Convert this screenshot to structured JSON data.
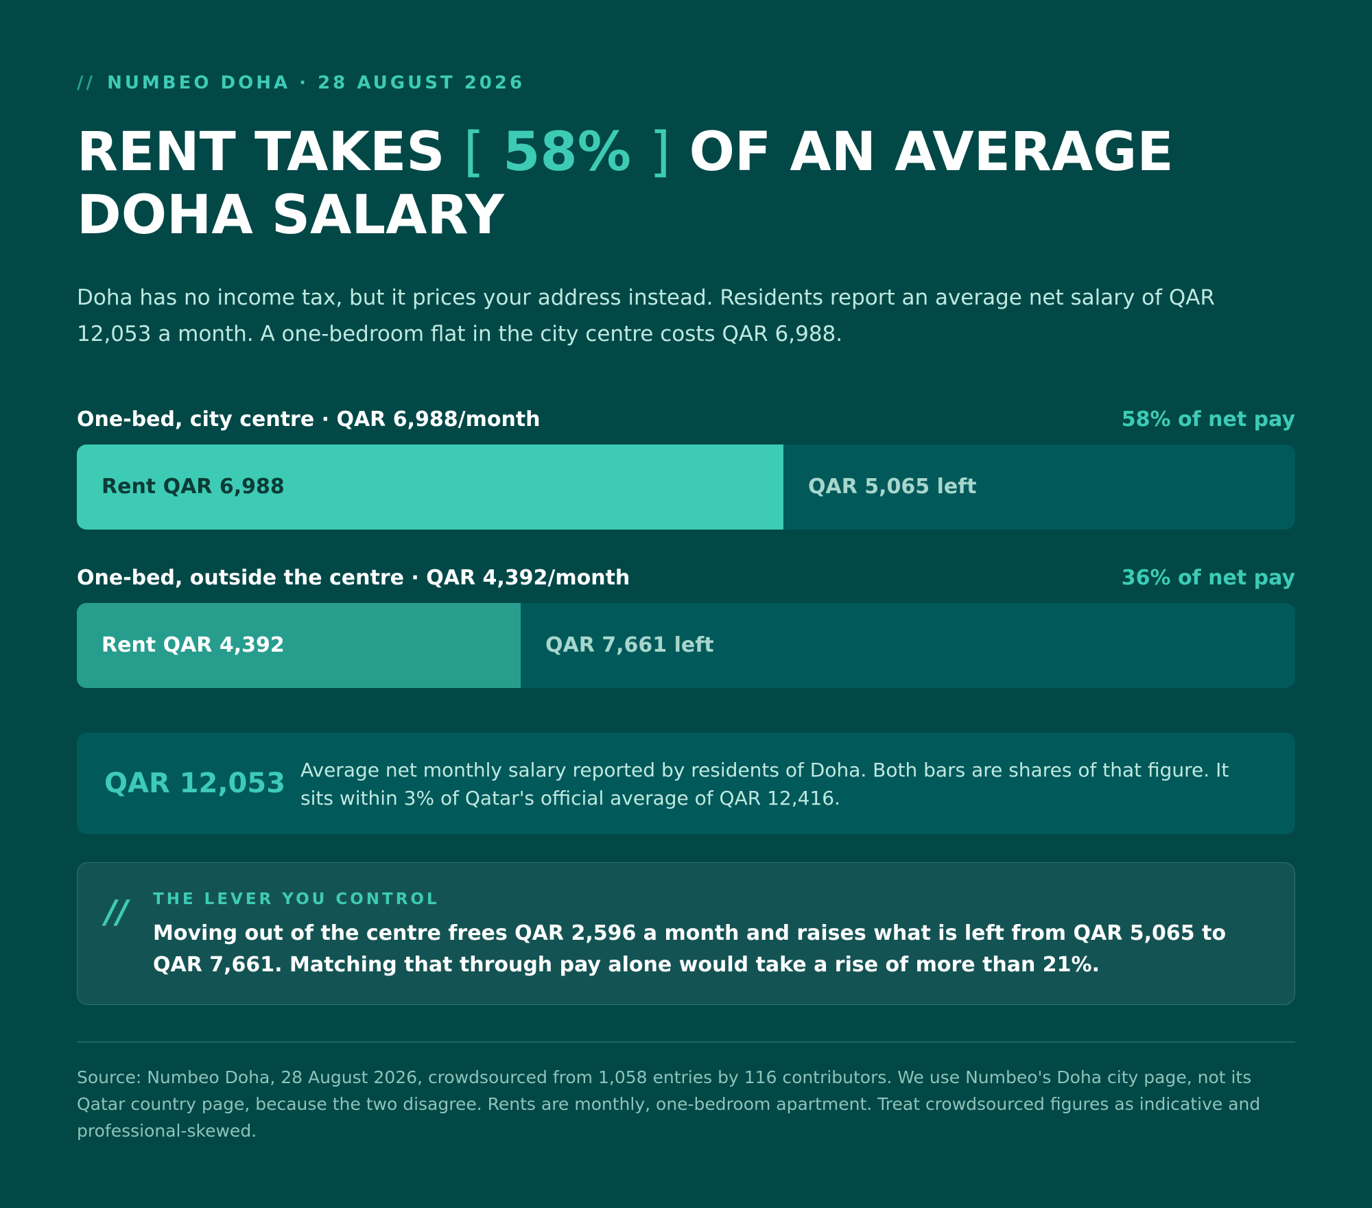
{
  "eyebrow": {
    "slashes": "//",
    "text": "NUMBEO DOHA · 28 AUGUST 2026"
  },
  "headline": {
    "before": "RENT TAKES",
    "bracket_open": "[",
    "accent": "58%",
    "bracket_close": "]",
    "after": "OF AN AVERAGE DOHA SALARY"
  },
  "lede": "Doha has no income tax, but it prices your address instead. Residents report an average net salary of QAR 12,053 a month. A one-bedroom flat in the city centre costs QAR 6,988.",
  "chart_data": {
    "type": "bar",
    "orientation": "horizontal-stacked",
    "total": 12053,
    "total_label": "QAR 12,053",
    "bars": [
      {
        "label": "One-bed, city centre · QAR 6,988/month",
        "share_label": "58% of net pay",
        "rent": 6988,
        "left": 5065,
        "rent_label": "Rent QAR 6,988",
        "left_label": "QAR 5,065 left",
        "color": "#3ecbb6",
        "text_color": "#0b3b36"
      },
      {
        "label": "One-bed, outside the centre · QAR 4,392/month",
        "share_label": "36% of net pay",
        "rent": 4392,
        "left": 7661,
        "rent_label": "Rent QAR 4,392",
        "left_label": "QAR 7,661 left",
        "color": "#279d8e",
        "text_color": "#ffffff"
      }
    ]
  },
  "salary": {
    "value": "QAR 12,053",
    "text": "Average net monthly salary reported by residents of Doha. Both bars are shares of that figure. It sits within 3% of Qatar's official average of QAR 12,416."
  },
  "lever": {
    "icon": "//",
    "title": "THE LEVER YOU CONTROL",
    "text": "Moving out of the centre frees QAR 2,596 a month and raises what is left from QAR 5,065 to QAR 7,661. Matching that through pay alone would take a rise of more than 21%."
  },
  "source": "Source: Numbeo Doha, 28 August 2026, crowdsourced from 1,058 entries by 116 contributors. We use Numbeo's Doha city page, not its Qatar country page, because the two disagree. Rents are monthly, one-bedroom apartment. Treat crowdsourced figures as indicative and professional-skewed.",
  "colors": {
    "background": "#014847",
    "accent": "#3ecbb6",
    "track": "#02595a"
  }
}
